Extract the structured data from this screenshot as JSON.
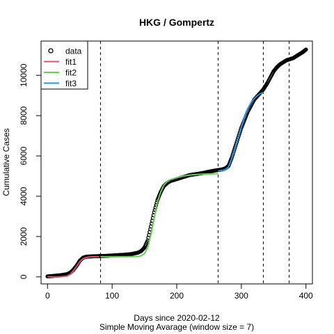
{
  "chart_data": {
    "type": "line",
    "title": "HKG / Gompertz",
    "xlabel": "Days since 2020-02-12",
    "xlabel2": "Simple Moving Avarage (window size = 7)",
    "ylabel": "Cumulative Cases",
    "xlim": [
      -10,
      410
    ],
    "ylim": [
      -350,
      11700
    ],
    "xticks": [
      0,
      100,
      200,
      300,
      400
    ],
    "yticks": [
      0,
      2000,
      4000,
      6000,
      8000,
      10000
    ],
    "vlines": [
      82,
      264,
      334,
      374
    ],
    "legend": {
      "position": "top-left",
      "entries": [
        {
          "name": "data",
          "color": "#000000",
          "kind": "circle"
        },
        {
          "name": "fit1",
          "color": "#DF536B",
          "kind": "line"
        },
        {
          "name": "fit2",
          "color": "#61D04F",
          "kind": "line"
        },
        {
          "name": "fit3",
          "color": "#2297E6",
          "kind": "line"
        }
      ]
    },
    "data_series": {
      "name": "data",
      "color": "#000000",
      "x": [
        0,
        10,
        20,
        30,
        35,
        40,
        45,
        50,
        55,
        60,
        65,
        70,
        80,
        90,
        100,
        110,
        120,
        130,
        140,
        145,
        150,
        155,
        160,
        165,
        170,
        175,
        180,
        185,
        190,
        200,
        210,
        220,
        230,
        240,
        250,
        260,
        264,
        270,
        275,
        280,
        285,
        290,
        295,
        300,
        310,
        320,
        330,
        334,
        340,
        345,
        350,
        355,
        360,
        365,
        370,
        375,
        380,
        385,
        390,
        395,
        400
      ],
      "y": [
        20,
        50,
        80,
        130,
        200,
        350,
        550,
        800,
        950,
        1000,
        1010,
        1020,
        1030,
        1040,
        1060,
        1080,
        1100,
        1130,
        1200,
        1280,
        1450,
        1800,
        2500,
        3200,
        3800,
        4200,
        4500,
        4650,
        4750,
        4850,
        4950,
        5050,
        5100,
        5150,
        5220,
        5280,
        5300,
        5330,
        5380,
        5500,
        5900,
        6400,
        6900,
        7400,
        8200,
        8800,
        9150,
        9300,
        9600,
        9900,
        10200,
        10400,
        10550,
        10650,
        10750,
        10800,
        10850,
        10950,
        11050,
        11150,
        11280
      ]
    },
    "fits": [
      {
        "name": "fit1",
        "color": "#DF536B",
        "x": [
          0,
          10,
          20,
          30,
          35,
          40,
          45,
          50,
          55,
          60,
          65,
          70,
          75,
          80
        ],
        "y": [
          0,
          0,
          5,
          40,
          120,
          300,
          520,
          750,
          900,
          960,
          985,
          995,
          1000,
          1000
        ]
      },
      {
        "name": "fit2",
        "color": "#61D04F",
        "x": [
          82,
          100,
          120,
          140,
          145,
          150,
          155,
          160,
          165,
          170,
          175,
          180,
          185,
          190,
          200,
          210,
          220,
          230,
          240,
          250,
          264
        ],
        "y": [
          1000,
          1000,
          1000,
          1010,
          1040,
          1150,
          1450,
          2100,
          2900,
          3700,
          4200,
          4550,
          4720,
          4820,
          4920,
          5000,
          5050,
          5080,
          5100,
          5110,
          5120
        ]
      },
      {
        "name": "fit3",
        "color": "#2297E6",
        "x": [
          264,
          270,
          275,
          280,
          285,
          290,
          295,
          300,
          305,
          310,
          315,
          320,
          325,
          330,
          334
        ],
        "y": [
          5250,
          5280,
          5320,
          5450,
          5850,
          6350,
          6900,
          7450,
          7950,
          8350,
          8650,
          8850,
          9000,
          9100,
          9150
        ]
      }
    ]
  }
}
